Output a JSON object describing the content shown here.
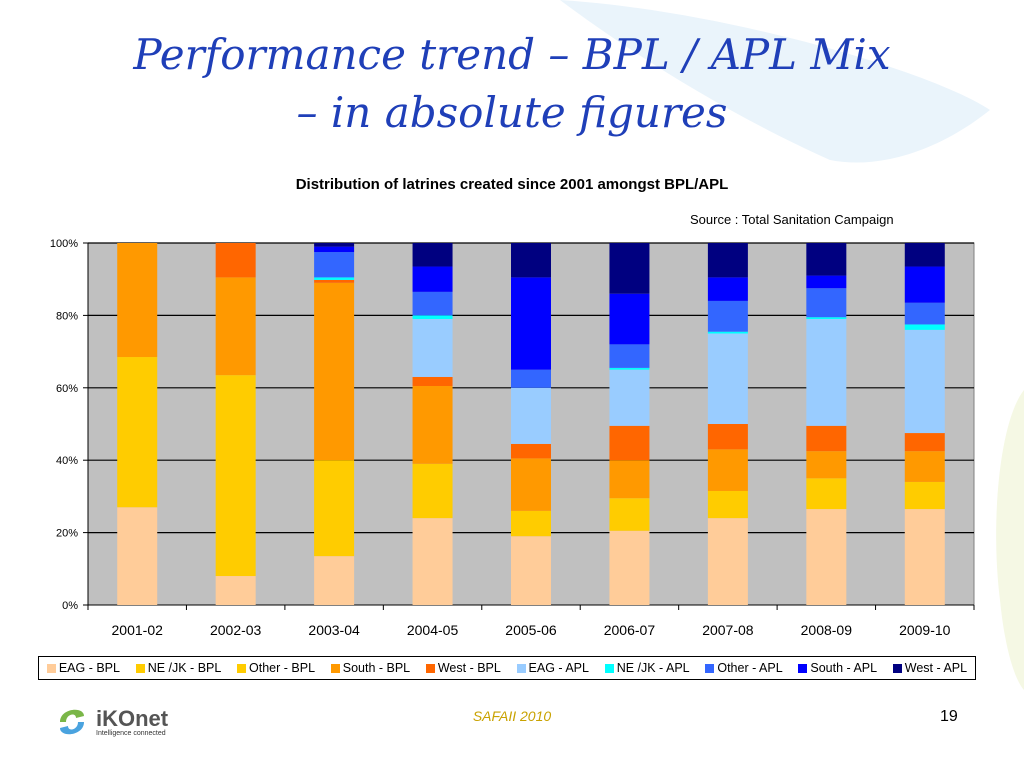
{
  "slide": {
    "title_line1": "Performance trend – BPL / APL Mix",
    "title_line2": "– in absolute figures",
    "footer": "SAFAII 2010",
    "page_number": "19",
    "logo_name": "iKOnet",
    "logo_tagline": "Intelligence connected"
  },
  "chart_data": {
    "type": "bar",
    "stacked": "percent",
    "title": "Distribution of latrines created since 2001 amongst BPL/APL",
    "source": "Source : Total Sanitation Campaign",
    "xlabel": "",
    "ylabel": "",
    "ylim": [
      0,
      100
    ],
    "yticks": [
      0,
      20,
      40,
      60,
      80,
      100
    ],
    "ytick_labels": [
      "0%",
      "20%",
      "40%",
      "60%",
      "80%",
      "100%"
    ],
    "grid": true,
    "legend_position": "bottom",
    "plot_background": "#c0c0c0",
    "categories": [
      "2001-02",
      "2002-03",
      "2003-04",
      "2004-05",
      "2005-06",
      "2006-07",
      "2007-08",
      "2008-09",
      "2009-10"
    ],
    "series": [
      {
        "name": "EAG - BPL",
        "color": "#ffcc99",
        "values": [
          27,
          8,
          13.5,
          24,
          19,
          20.5,
          24,
          26.5,
          26.5
        ]
      },
      {
        "name": "NE /JK - BPL",
        "color": "#ffcc00",
        "values": [
          41.5,
          55.5,
          0,
          0,
          0,
          0,
          0,
          0,
          0
        ]
      },
      {
        "name": "Other - BPL",
        "color": "#ffcc00",
        "values": [
          0,
          0,
          26.5,
          15,
          7,
          9,
          7.5,
          8.5,
          7.5
        ]
      },
      {
        "name": "South - BPL",
        "color": "#ff9900",
        "values": [
          31.5,
          27,
          49,
          21.5,
          14.5,
          10.5,
          11.5,
          7.5,
          8.5
        ]
      },
      {
        "name": "West - BPL",
        "color": "#ff6600",
        "values": [
          0,
          9.5,
          0.8,
          2.5,
          4,
          9.5,
          7,
          7,
          5
        ]
      },
      {
        "name": "EAG - APL",
        "color": "#99ccff",
        "values": [
          0,
          0,
          0,
          16,
          15.5,
          15.5,
          25,
          29.5,
          28.5
        ]
      },
      {
        "name": "NE /JK - APL",
        "color": "#00ffff",
        "values": [
          0,
          0,
          0.7,
          1,
          0,
          0.5,
          0.5,
          0.5,
          1.5
        ]
      },
      {
        "name": "Other - APL",
        "color": "#3366ff",
        "values": [
          0,
          0,
          7,
          6.5,
          5,
          6.5,
          8.5,
          8,
          6
        ]
      },
      {
        "name": "South - APL",
        "color": "#0000ff",
        "values": [
          0,
          0,
          1.5,
          7,
          25.5,
          14,
          6.5,
          3.5,
          10
        ]
      },
      {
        "name": "West - APL",
        "color": "#000080",
        "values": [
          0,
          0,
          1,
          6.5,
          9.5,
          14,
          9.5,
          9,
          6.5
        ]
      }
    ]
  }
}
